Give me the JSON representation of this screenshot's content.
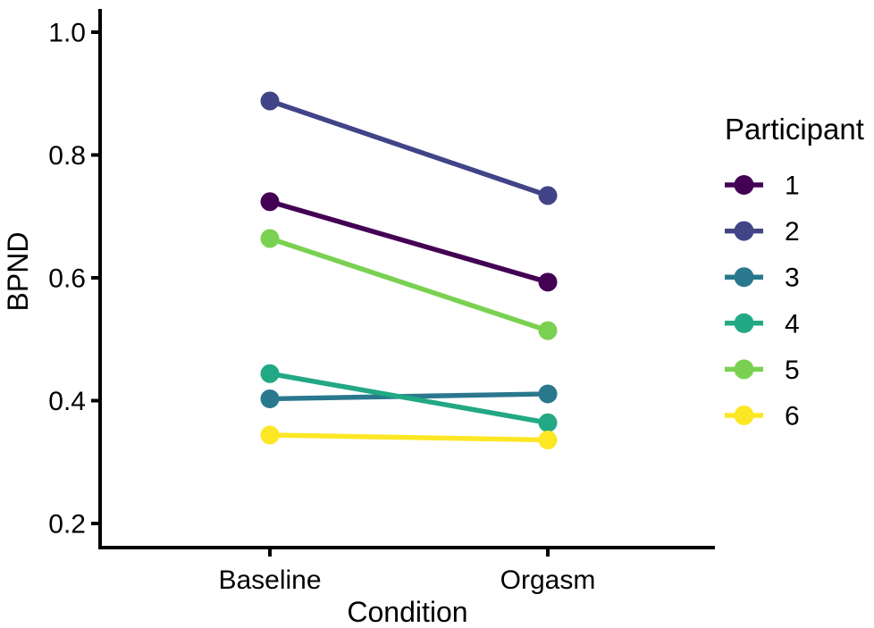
{
  "figure": {
    "background": "#ffffff",
    "axis_color": "#000000",
    "text_color": "#000000"
  },
  "chart_data": {
    "type": "line",
    "variant": "slope-chart",
    "title": "",
    "xlabel": "Condition",
    "ylabel": "BPND",
    "categories": [
      "Baseline",
      "Orgasm"
    ],
    "series": [
      {
        "name": "1",
        "color": "#440154",
        "values": [
          0.724,
          0.593
        ]
      },
      {
        "name": "2",
        "color": "#414487",
        "values": [
          0.888,
          0.734
        ]
      },
      {
        "name": "3",
        "color": "#2a788e",
        "values": [
          0.403,
          0.411
        ]
      },
      {
        "name": "4",
        "color": "#22a884",
        "values": [
          0.444,
          0.364
        ]
      },
      {
        "name": "5",
        "color": "#7ad151",
        "values": [
          0.664,
          0.514
        ]
      },
      {
        "name": "6",
        "color": "#fde725",
        "values": [
          0.344,
          0.336
        ]
      }
    ],
    "yticks": [
      0.2,
      0.4,
      0.6,
      0.8,
      1.0
    ],
    "ytick_labels": [
      "0.2",
      "0.4",
      "0.6",
      "0.8",
      "1.0"
    ],
    "ylim": [
      0.16,
      1.04
    ],
    "grid": false,
    "legend": {
      "title": "Participant",
      "position": "right",
      "entries": [
        "1",
        "2",
        "3",
        "4",
        "5",
        "6"
      ]
    }
  }
}
